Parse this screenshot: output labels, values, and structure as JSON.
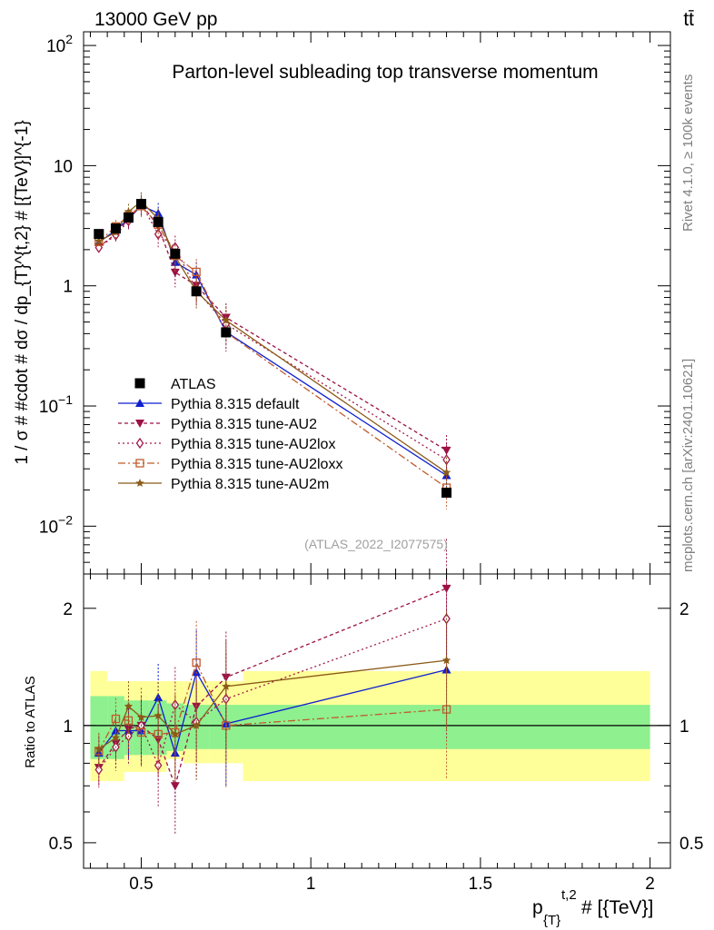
{
  "header": {
    "energy": "13000 GeV pp",
    "process": "tt̄"
  },
  "side_labels": {
    "rivet": "Rivet 4.1.0, ≥ 100k events",
    "mcplots": "mcplots.cern.ch [arXiv:2401.10621]"
  },
  "chart_data": {
    "type": "line",
    "title": "Parton-level subleading top transverse momentum",
    "watermark": "(ATLAS_2022_I2077575)",
    "xlabel": "p_{T}^{t,2} # [{TeV}]",
    "xlabel_main": "p",
    "xlabel_sub": "{T}",
    "xlabel_sup": "t,2",
    "xlabel_tail": " # [{TeV}]",
    "ylabel": "1 / σ # #cdot # dσ / dp_{T}^{t,2} # [{TeV}]^{-1}",
    "ratio_ylabel": "Ratio to ATLAS",
    "xlim": [
      0.33,
      2.06
    ],
    "ylim": [
      0.004,
      130
    ],
    "ratio_ylim": [
      0.43,
      2.45
    ],
    "x_ticks": [
      {
        "value": 0.5,
        "label": "0.5"
      },
      {
        "value": 1,
        "label": "1"
      },
      {
        "value": 1.5,
        "label": "1.5"
      },
      {
        "value": 2,
        "label": "2"
      }
    ],
    "y_ticks": [
      {
        "value": 0.01,
        "base": "10",
        "exp": "−2"
      },
      {
        "value": 0.1,
        "base": "10",
        "exp": "−1"
      },
      {
        "value": 1,
        "base": "1",
        "exp": ""
      },
      {
        "value": 10,
        "base": "10",
        "exp": ""
      },
      {
        "value": 100,
        "base": "10",
        "exp": "2"
      }
    ],
    "ratio_ticks": [
      {
        "value": 0.5,
        "label": "0.5"
      },
      {
        "value": 1,
        "label": "1"
      },
      {
        "value": 2,
        "label": "2"
      }
    ],
    "bin_edges": [
      0.35,
      0.4,
      0.45,
      0.475,
      0.525,
      0.575,
      0.625,
      0.7,
      0.8,
      2.0
    ],
    "x": [
      0.375,
      0.425,
      0.4625,
      0.5,
      0.55,
      0.6,
      0.6625,
      0.75,
      1.4
    ],
    "data": {
      "name": "ATLAS",
      "color": "#000000",
      "values": [
        2.7,
        3.0,
        3.7,
        4.8,
        3.4,
        1.85,
        0.9,
        0.41,
        0.019
      ],
      "band_stat": [
        [
          0.82,
          1.19
        ],
        [
          0.82,
          1.19
        ],
        [
          0.84,
          1.16
        ],
        [
          0.84,
          1.16
        ],
        [
          0.84,
          1.16
        ],
        [
          0.86,
          1.14
        ],
        [
          0.87,
          1.13
        ],
        [
          0.87,
          1.13
        ],
        [
          0.87,
          1.13
        ]
      ],
      "band_total": [
        [
          0.72,
          1.38
        ],
        [
          0.72,
          1.3
        ],
        [
          0.76,
          1.3
        ],
        [
          0.76,
          1.3
        ],
        [
          0.76,
          1.3
        ],
        [
          0.82,
          1.3
        ],
        [
          0.8,
          1.3
        ],
        [
          0.8,
          1.3
        ],
        [
          0.72,
          1.38
        ]
      ]
    },
    "series": [
      {
        "name": "Pythia 8.315 default",
        "color": "#0f1fd0",
        "dash": "",
        "marker": "triangle-up",
        "ratio": [
          0.85,
          0.97,
          0.97,
          0.97,
          1.18,
          0.85,
          1.37,
          1.01,
          1.39
        ]
      },
      {
        "name": "Pythia 8.315 tune-AU2",
        "color": "#9b1146",
        "dash": "4,3",
        "marker": "triangle-down",
        "ratio": [
          0.78,
          0.9,
          0.98,
          1.0,
          0.92,
          0.7,
          1.12,
          1.33,
          2.25
        ]
      },
      {
        "name": "Pythia 8.315 tune-AU2lox",
        "color": "#a11a4a",
        "dash": "2,3",
        "marker": "diamond",
        "ratio": [
          0.77,
          0.88,
          0.94,
          1.0,
          0.79,
          1.13,
          1.02,
          1.17,
          1.88
        ]
      },
      {
        "name": "Pythia 8.315 tune-AU2loxx",
        "color": "#c15a2c",
        "dash": "8,3,2,3",
        "marker": "open-square",
        "ratio": [
          0.86,
          1.04,
          1.03,
          0.96,
          0.95,
          0.96,
          1.45,
          1.0,
          1.1
        ]
      },
      {
        "name": "Pythia 8.315 tune-AU2m",
        "color": "#8b5a18",
        "dash": "",
        "marker": "star",
        "ratio": [
          0.87,
          0.93,
          1.12,
          1.05,
          1.06,
          0.95,
          1.0,
          1.26,
          1.47
        ]
      }
    ],
    "legend_position": "lower-left"
  }
}
